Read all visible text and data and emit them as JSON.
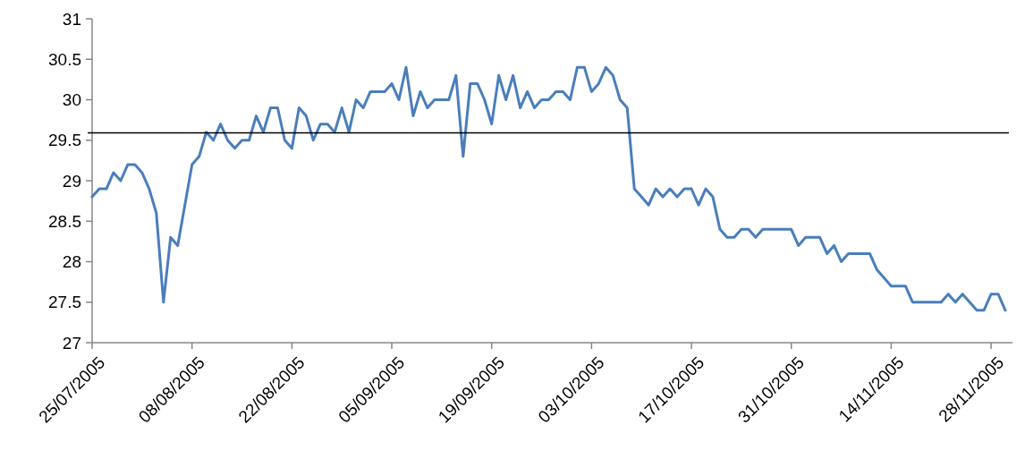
{
  "chart_data": {
    "type": "line",
    "xlim": [
      "2005-07-25",
      "2005-12-01"
    ],
    "xticks": [
      {
        "value": "2005-07-25",
        "label": "25/07/2005"
      },
      {
        "value": "2005-08-08",
        "label": "08/08/2005"
      },
      {
        "value": "2005-08-22",
        "label": "22/08/2005"
      },
      {
        "value": "2005-09-05",
        "label": "05/09/2005"
      },
      {
        "value": "2005-09-19",
        "label": "19/09/2005"
      },
      {
        "value": "2005-10-03",
        "label": "03/10/2005"
      },
      {
        "value": "2005-10-17",
        "label": "17/10/2005"
      },
      {
        "value": "2005-10-31",
        "label": "31/10/2005"
      },
      {
        "value": "2005-11-14",
        "label": "14/11/2005"
      },
      {
        "value": "2005-11-28",
        "label": "28/11/2005"
      }
    ],
    "ylim": [
      27,
      31
    ],
    "yticks": [
      27,
      27.5,
      28,
      28.5,
      29,
      29.5,
      30,
      30.5,
      31
    ],
    "grid": false,
    "marker": "none",
    "line_style": "solid",
    "x": [
      "2005-07-25",
      "2005-07-26",
      "2005-07-27",
      "2005-07-28",
      "2005-07-29",
      "2005-07-30",
      "2005-07-31",
      "2005-08-01",
      "2005-08-02",
      "2005-08-03",
      "2005-08-04",
      "2005-08-05",
      "2005-08-06",
      "2005-08-07",
      "2005-08-08",
      "2005-08-09",
      "2005-08-10",
      "2005-08-11",
      "2005-08-12",
      "2005-08-13",
      "2005-08-14",
      "2005-08-15",
      "2005-08-16",
      "2005-08-17",
      "2005-08-18",
      "2005-08-19",
      "2005-08-20",
      "2005-08-21",
      "2005-08-22",
      "2005-08-23",
      "2005-08-24",
      "2005-08-25",
      "2005-08-26",
      "2005-08-27",
      "2005-08-28",
      "2005-08-29",
      "2005-08-30",
      "2005-08-31",
      "2005-09-01",
      "2005-09-02",
      "2005-09-03",
      "2005-09-04",
      "2005-09-05",
      "2005-09-06",
      "2005-09-07",
      "2005-09-08",
      "2005-09-09",
      "2005-09-10",
      "2005-09-11",
      "2005-09-12",
      "2005-09-13",
      "2005-09-14",
      "2005-09-15",
      "2005-09-16",
      "2005-09-17",
      "2005-09-18",
      "2005-09-19",
      "2005-09-20",
      "2005-09-21",
      "2005-09-22",
      "2005-09-23",
      "2005-09-24",
      "2005-09-25",
      "2005-09-26",
      "2005-09-27",
      "2005-09-28",
      "2005-09-29",
      "2005-09-30",
      "2005-10-01",
      "2005-10-02",
      "2005-10-03",
      "2005-10-04",
      "2005-10-05",
      "2005-10-06",
      "2005-10-07",
      "2005-10-08",
      "2005-10-09",
      "2005-10-10",
      "2005-10-11",
      "2005-10-12",
      "2005-10-13",
      "2005-10-14",
      "2005-10-15",
      "2005-10-16",
      "2005-10-17",
      "2005-10-18",
      "2005-10-19",
      "2005-10-20",
      "2005-10-21",
      "2005-10-22",
      "2005-10-23",
      "2005-10-24",
      "2005-10-25",
      "2005-10-26",
      "2005-10-27",
      "2005-10-28",
      "2005-10-29",
      "2005-10-30",
      "2005-10-31",
      "2005-11-01",
      "2005-11-02",
      "2005-11-03",
      "2005-11-04",
      "2005-11-05",
      "2005-11-06",
      "2005-11-07",
      "2005-11-08",
      "2005-11-09",
      "2005-11-10",
      "2005-11-11",
      "2005-11-12",
      "2005-11-13",
      "2005-11-14",
      "2005-11-15",
      "2005-11-16",
      "2005-11-17",
      "2005-11-18",
      "2005-11-19",
      "2005-11-20",
      "2005-11-21",
      "2005-11-22",
      "2005-11-23",
      "2005-11-24",
      "2005-11-25",
      "2005-11-26",
      "2005-11-27",
      "2005-11-28",
      "2005-11-29",
      "2005-11-30"
    ],
    "ref_lines": [
      {
        "axis": "y",
        "value": 29.59,
        "color": "#000000"
      }
    ],
    "series": [
      {
        "color": "#4a7ebb",
        "values": [
          28.8,
          28.9,
          28.9,
          29.1,
          29.0,
          29.2,
          29.2,
          29.1,
          28.9,
          28.6,
          27.5,
          28.3,
          28.2,
          28.7,
          29.2,
          29.3,
          29.6,
          29.5,
          29.7,
          29.5,
          29.4,
          29.5,
          29.5,
          29.8,
          29.6,
          29.9,
          29.9,
          29.5,
          29.4,
          29.9,
          29.8,
          29.5,
          29.7,
          29.7,
          29.6,
          29.9,
          29.6,
          30.0,
          29.9,
          30.1,
          30.1,
          30.1,
          30.2,
          30.0,
          30.4,
          29.8,
          30.1,
          29.9,
          30.0,
          30.0,
          30.0,
          30.3,
          29.3,
          30.2,
          30.2,
          30.0,
          29.7,
          30.3,
          30.0,
          30.3,
          29.9,
          30.1,
          29.9,
          30.0,
          30.0,
          30.1,
          30.1,
          30.0,
          30.4,
          30.4,
          30.1,
          30.2,
          30.4,
          30.3,
          30.0,
          29.9,
          28.9,
          28.8,
          28.7,
          28.9,
          28.8,
          28.9,
          28.8,
          28.9,
          28.9,
          28.7,
          28.9,
          28.8,
          28.4,
          28.3,
          28.3,
          28.4,
          28.4,
          28.3,
          28.4,
          28.4,
          28.4,
          28.4,
          28.4,
          28.2,
          28.3,
          28.3,
          28.3,
          28.1,
          28.2,
          28.0,
          28.1,
          28.1,
          28.1,
          28.1,
          27.9,
          27.8,
          27.7,
          27.7,
          27.7,
          27.5,
          27.5,
          27.5,
          27.5,
          27.5,
          27.6,
          27.5,
          27.6,
          27.5,
          27.4,
          27.4,
          27.6,
          27.6,
          27.4
        ]
      }
    ]
  }
}
